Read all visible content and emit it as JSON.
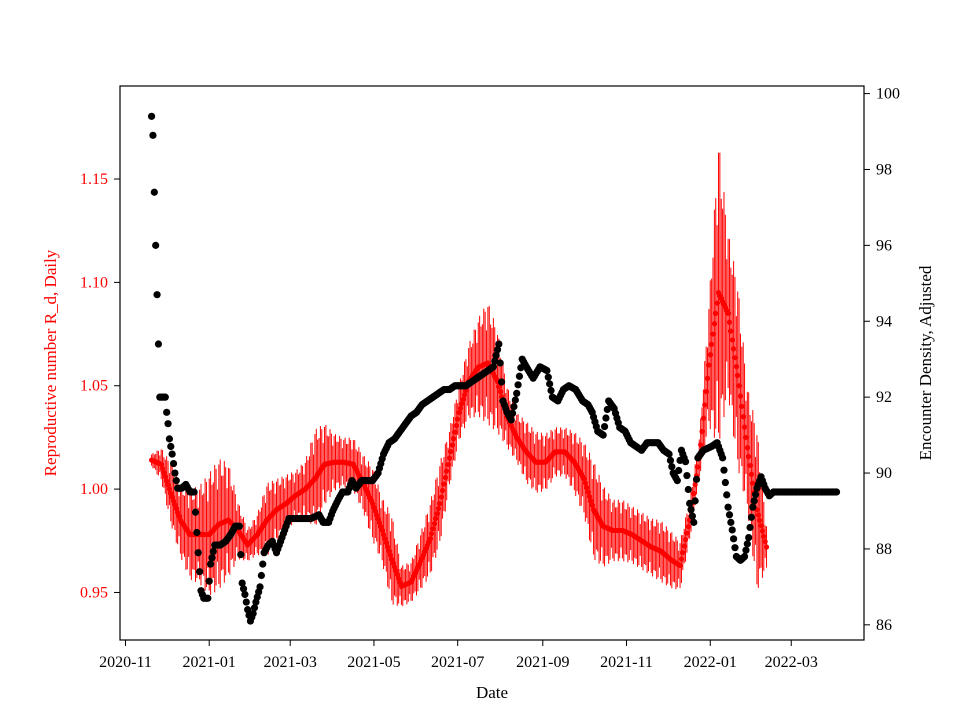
{
  "chart_data": {
    "type": "scatter",
    "title": "",
    "xlabel": "Date",
    "ylabel_left": "Reproductive number R_d, Daily",
    "ylabel_right": "Encounter Density, Adjusted",
    "x_range": [
      "2020-10-28",
      "2022-04-23"
    ],
    "ylim_left": [
      0.927,
      1.195
    ],
    "ylim_right": [
      85.6,
      100.2
    ],
    "x_ticks": [
      "2020-11",
      "2021-01",
      "2021-03",
      "2021-05",
      "2021-07",
      "2021-09",
      "2021-11",
      "2022-01",
      "2022-03"
    ],
    "y_ticks_left": [
      "0.95",
      "1.00",
      "1.05",
      "1.10",
      "1.15"
    ],
    "y_ticks_right": [
      "86",
      "88",
      "90",
      "92",
      "94",
      "96",
      "98",
      "100"
    ],
    "colors": {
      "rd": "#ff0000",
      "density": "#000000",
      "left_axis_text": "#ff0000"
    },
    "grid": false,
    "series": [
      {
        "axis": "left",
        "style": "markers-with-error-bars",
        "points": [
          [
            "2020-11-20",
            1.014,
            0.003
          ],
          [
            "2020-11-27",
            1.012,
            0.008
          ],
          [
            "2020-12-04",
            0.998,
            0.015
          ],
          [
            "2020-12-11",
            0.985,
            0.018
          ],
          [
            "2020-12-18",
            0.978,
            0.022
          ],
          [
            "2020-12-25",
            0.978,
            0.024
          ],
          [
            "2021-01-01",
            0.978,
            0.03
          ],
          [
            "2021-01-08",
            0.983,
            0.032
          ],
          [
            "2021-01-15",
            0.985,
            0.028
          ],
          [
            "2021-01-22",
            0.98,
            0.014
          ],
          [
            "2021-01-29",
            0.973,
            0.008
          ],
          [
            "2021-02-05",
            0.978,
            0.01
          ],
          [
            "2021-02-12",
            0.985,
            0.018
          ],
          [
            "2021-02-19",
            0.99,
            0.015
          ],
          [
            "2021-02-26",
            0.993,
            0.014
          ],
          [
            "2021-03-05",
            0.997,
            0.012
          ],
          [
            "2021-03-12",
            1.0,
            0.014
          ],
          [
            "2021-03-19",
            1.005,
            0.024
          ],
          [
            "2021-03-26",
            1.012,
            0.02
          ],
          [
            "2021-04-02",
            1.013,
            0.014
          ],
          [
            "2021-04-09",
            1.013,
            0.012
          ],
          [
            "2021-04-16",
            1.012,
            0.013
          ],
          [
            "2021-04-23",
            1.003,
            0.014
          ],
          [
            "2021-04-30",
            0.993,
            0.018
          ],
          [
            "2021-05-07",
            0.98,
            0.016
          ],
          [
            "2021-05-14",
            0.966,
            0.022
          ],
          [
            "2021-05-21",
            0.953,
            0.01
          ],
          [
            "2021-05-28",
            0.955,
            0.01
          ],
          [
            "2021-06-04",
            0.965,
            0.014
          ],
          [
            "2021-06-11",
            0.976,
            0.018
          ],
          [
            "2021-06-18",
            0.993,
            0.02
          ],
          [
            "2021-06-25",
            1.015,
            0.014
          ],
          [
            "2021-07-02",
            1.037,
            0.014
          ],
          [
            "2021-07-09",
            1.052,
            0.018
          ],
          [
            "2021-07-16",
            1.059,
            0.024
          ],
          [
            "2021-07-23",
            1.061,
            0.03
          ],
          [
            "2021-07-30",
            1.052,
            0.025
          ],
          [
            "2021-08-06",
            1.035,
            0.015
          ],
          [
            "2021-08-13",
            1.025,
            0.012
          ],
          [
            "2021-08-20",
            1.018,
            0.015
          ],
          [
            "2021-08-27",
            1.013,
            0.015
          ],
          [
            "2021-09-03",
            1.013,
            0.014
          ],
          [
            "2021-09-10",
            1.018,
            0.012
          ],
          [
            "2021-09-17",
            1.018,
            0.012
          ],
          [
            "2021-09-24",
            1.013,
            0.015
          ],
          [
            "2021-10-01",
            1.005,
            0.018
          ],
          [
            "2021-10-08",
            0.99,
            0.024
          ],
          [
            "2021-10-15",
            0.982,
            0.02
          ],
          [
            "2021-10-22",
            0.98,
            0.015
          ],
          [
            "2021-10-29",
            0.98,
            0.015
          ],
          [
            "2021-11-05",
            0.978,
            0.014
          ],
          [
            "2021-11-12",
            0.975,
            0.014
          ],
          [
            "2021-11-19",
            0.972,
            0.014
          ],
          [
            "2021-11-26",
            0.97,
            0.015
          ],
          [
            "2021-12-03",
            0.966,
            0.014
          ],
          [
            "2021-12-10",
            0.963,
            0.012
          ],
          [
            "2021-12-17",
            0.985,
            0.01
          ],
          [
            "2021-12-24",
            1.015,
            0.01
          ],
          [
            "2021-12-31",
            1.06,
            0.03
          ],
          [
            "2022-01-07",
            1.095,
            0.075
          ],
          [
            "2022-01-14",
            1.085,
            0.04
          ],
          [
            "2022-01-21",
            1.055,
            0.045
          ],
          [
            "2022-01-28",
            1.02,
            0.03
          ],
          [
            "2022-02-04",
            0.99,
            0.04
          ],
          [
            "2022-02-11",
            0.972,
            0.01
          ]
        ]
      },
      {
        "axis": "right",
        "style": "dots",
        "points": [
          [
            "2020-11-20",
            99.4
          ],
          [
            "2020-11-21",
            98.9
          ],
          [
            "2020-11-22",
            97.4
          ],
          [
            "2020-11-23",
            96.0
          ],
          [
            "2020-11-24",
            94.7
          ],
          [
            "2020-11-25",
            93.4
          ],
          [
            "2020-11-26",
            92.0
          ],
          [
            "2020-11-28",
            92.0
          ],
          [
            "2020-11-30",
            92.0
          ],
          [
            "2020-12-01",
            91.6
          ],
          [
            "2020-12-02",
            91.3
          ],
          [
            "2020-12-03",
            90.9
          ],
          [
            "2020-12-05",
            90.5
          ],
          [
            "2020-12-07",
            90.0
          ],
          [
            "2020-12-09",
            89.6
          ],
          [
            "2020-12-12",
            89.6
          ],
          [
            "2020-12-15",
            89.7
          ],
          [
            "2020-12-18",
            89.5
          ],
          [
            "2020-12-21",
            89.5
          ],
          [
            "2020-12-24",
            87.9
          ],
          [
            "2020-12-26",
            86.9
          ],
          [
            "2020-12-28",
            86.7
          ],
          [
            "2020-12-31",
            86.7
          ],
          [
            "2021-01-02",
            87.6
          ],
          [
            "2021-01-05",
            88.1
          ],
          [
            "2021-01-09",
            88.1
          ],
          [
            "2021-01-13",
            88.2
          ],
          [
            "2021-01-17",
            88.4
          ],
          [
            "2021-01-20",
            88.6
          ],
          [
            "2021-01-23",
            88.6
          ],
          [
            "2021-01-25",
            87.1
          ],
          [
            "2021-01-27",
            86.8
          ],
          [
            "2021-01-29",
            86.4
          ],
          [
            "2021-01-31",
            86.1
          ],
          [
            "2021-02-02",
            86.3
          ],
          [
            "2021-02-04",
            86.6
          ],
          [
            "2021-02-07",
            87.0
          ],
          [
            "2021-02-10",
            87.9
          ],
          [
            "2021-02-13",
            88.1
          ],
          [
            "2021-02-16",
            88.2
          ],
          [
            "2021-02-19",
            87.9
          ],
          [
            "2021-02-22",
            88.2
          ],
          [
            "2021-02-25",
            88.5
          ],
          [
            "2021-02-28",
            88.8
          ],
          [
            "2021-03-04",
            88.8
          ],
          [
            "2021-03-10",
            88.8
          ],
          [
            "2021-03-16",
            88.8
          ],
          [
            "2021-03-22",
            88.9
          ],
          [
            "2021-03-25",
            88.7
          ],
          [
            "2021-03-29",
            88.7
          ],
          [
            "2021-04-01",
            89.0
          ],
          [
            "2021-04-05",
            89.3
          ],
          [
            "2021-04-08",
            89.5
          ],
          [
            "2021-04-12",
            89.5
          ],
          [
            "2021-04-15",
            89.8
          ],
          [
            "2021-04-18",
            89.6
          ],
          [
            "2021-04-22",
            89.8
          ],
          [
            "2021-04-26",
            89.8
          ],
          [
            "2021-04-30",
            89.8
          ],
          [
            "2021-05-04",
            90.0
          ],
          [
            "2021-05-08",
            90.5
          ],
          [
            "2021-05-12",
            90.8
          ],
          [
            "2021-05-16",
            90.9
          ],
          [
            "2021-05-20",
            91.1
          ],
          [
            "2021-05-24",
            91.3
          ],
          [
            "2021-05-28",
            91.5
          ],
          [
            "2021-06-01",
            91.6
          ],
          [
            "2021-06-05",
            91.8
          ],
          [
            "2021-06-09",
            91.9
          ],
          [
            "2021-06-13",
            92.0
          ],
          [
            "2021-06-17",
            92.1
          ],
          [
            "2021-06-21",
            92.2
          ],
          [
            "2021-06-25",
            92.2
          ],
          [
            "2021-06-29",
            92.3
          ],
          [
            "2021-07-03",
            92.3
          ],
          [
            "2021-07-07",
            92.3
          ],
          [
            "2021-07-11",
            92.4
          ],
          [
            "2021-07-15",
            92.5
          ],
          [
            "2021-07-19",
            92.6
          ],
          [
            "2021-07-23",
            92.7
          ],
          [
            "2021-07-27",
            92.8
          ],
          [
            "2021-07-31",
            93.4
          ],
          [
            "2021-08-03",
            91.9
          ],
          [
            "2021-08-06",
            91.6
          ],
          [
            "2021-08-09",
            91.4
          ],
          [
            "2021-08-13",
            92.1
          ],
          [
            "2021-08-17",
            93.0
          ],
          [
            "2021-08-20",
            92.8
          ],
          [
            "2021-08-25",
            92.5
          ],
          [
            "2021-08-30",
            92.8
          ],
          [
            "2021-09-04",
            92.7
          ],
          [
            "2021-09-08",
            92.0
          ],
          [
            "2021-09-12",
            91.9
          ],
          [
            "2021-09-16",
            92.2
          ],
          [
            "2021-09-20",
            92.3
          ],
          [
            "2021-09-25",
            92.2
          ],
          [
            "2021-09-30",
            91.9
          ],
          [
            "2021-10-04",
            91.8
          ],
          [
            "2021-10-07",
            91.6
          ],
          [
            "2021-10-11",
            91.1
          ],
          [
            "2021-10-15",
            91.0
          ],
          [
            "2021-10-19",
            91.9
          ],
          [
            "2021-10-23",
            91.7
          ],
          [
            "2021-10-27",
            91.2
          ],
          [
            "2021-10-31",
            91.1
          ],
          [
            "2021-11-04",
            90.8
          ],
          [
            "2021-11-08",
            90.7
          ],
          [
            "2021-11-12",
            90.6
          ],
          [
            "2021-11-16",
            90.8
          ],
          [
            "2021-11-20",
            90.8
          ],
          [
            "2021-11-24",
            90.8
          ],
          [
            "2021-11-28",
            90.6
          ],
          [
            "2021-12-02",
            90.5
          ],
          [
            "2021-12-05",
            90.0
          ],
          [
            "2021-12-08",
            89.8
          ],
          [
            "2021-12-11",
            90.6
          ],
          [
            "2021-12-14",
            90.3
          ],
          [
            "2021-12-17",
            89.2
          ],
          [
            "2021-12-20",
            88.7
          ],
          [
            "2021-12-23",
            90.4
          ],
          [
            "2021-12-27",
            90.6
          ],
          [
            "2022-01-02",
            90.7
          ],
          [
            "2022-01-06",
            90.8
          ],
          [
            "2022-01-10",
            90.4
          ],
          [
            "2022-01-14",
            89.1
          ],
          [
            "2022-01-17",
            88.5
          ],
          [
            "2022-01-20",
            87.8
          ],
          [
            "2022-01-23",
            87.7
          ],
          [
            "2022-01-26",
            87.8
          ],
          [
            "2022-01-29",
            88.3
          ],
          [
            "2022-02-01",
            89.1
          ],
          [
            "2022-02-04",
            89.6
          ],
          [
            "2022-02-07",
            89.9
          ],
          [
            "2022-02-10",
            89.6
          ],
          [
            "2022-02-13",
            89.4
          ],
          [
            "2022-02-16",
            89.5
          ],
          [
            "2022-02-18",
            89.5
          ],
          [
            "2022-02-22",
            89.5
          ],
          [
            "2022-02-26",
            89.5
          ],
          [
            "2022-03-02",
            89.5
          ],
          [
            "2022-03-06",
            89.5
          ],
          [
            "2022-03-10",
            89.5
          ],
          [
            "2022-03-14",
            89.5
          ],
          [
            "2022-03-18",
            89.5
          ],
          [
            "2022-03-22",
            89.5
          ],
          [
            "2022-03-26",
            89.5
          ],
          [
            "2022-03-30",
            89.5
          ],
          [
            "2022-04-03",
            89.5
          ]
        ]
      }
    ]
  }
}
